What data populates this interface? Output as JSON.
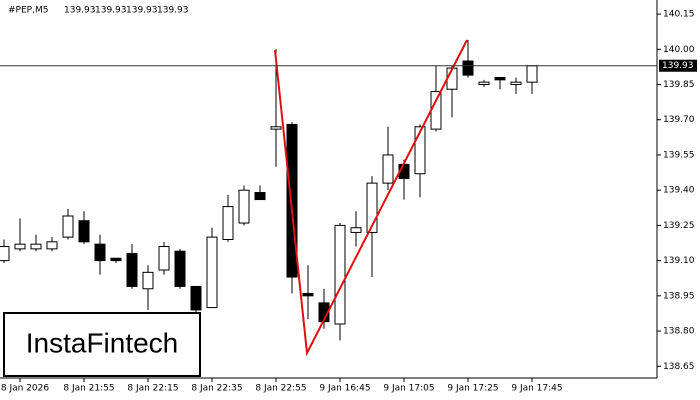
{
  "chart_data": {
    "type": "candlestick",
    "symbol": "#PEP,M5",
    "quote": [
      139.93,
      139.93,
      139.93,
      139.93
    ],
    "last_price": 139.93,
    "logo": "InstaFintech",
    "categories": [
      null,
      "8 Jan 2026",
      null,
      null,
      null,
      "8 Jan 21:55",
      null,
      null,
      null,
      "8 Jan 22:15",
      null,
      null,
      null,
      "8 Jan 22:35",
      null,
      null,
      null,
      "8 Jan 22:55",
      null,
      null,
      null,
      "9 Jan 16:45",
      null,
      null,
      null,
      "9 Jan 17:05",
      null,
      null,
      null,
      "9 Jan 17:25",
      null,
      null,
      null,
      "9 Jan 17:45"
    ],
    "open": [
      139.1,
      139.15,
      139.15,
      139.15,
      139.2,
      139.27,
      139.17,
      139.11,
      139.13,
      138.98,
      139.06,
      139.14,
      138.99,
      138.9,
      139.19,
      139.26,
      139.39,
      139.66,
      139.68,
      138.96,
      138.92,
      138.83,
      139.22,
      139.22,
      139.43,
      139.51,
      139.47,
      139.66,
      139.83,
      139.95,
      139.85,
      139.88,
      139.85,
      139.86
    ],
    "high": [
      139.19,
      139.28,
      139.21,
      139.2,
      139.32,
      139.31,
      139.21,
      139.11,
      139.17,
      139.08,
      139.18,
      139.15,
      138.99,
      139.24,
      139.38,
      139.42,
      139.42,
      140.0,
      139.69,
      139.08,
      138.98,
      139.26,
      139.31,
      139.46,
      139.67,
      139.53,
      139.68,
      139.93,
      139.93,
      140.04,
      139.87,
      139.88,
      139.88,
      139.93
    ],
    "low": [
      139.09,
      139.14,
      139.14,
      139.14,
      139.19,
      139.17,
      139.04,
      139.09,
      138.98,
      138.89,
      139.04,
      138.98,
      138.83,
      138.9,
      139.18,
      139.25,
      139.36,
      139.5,
      138.96,
      138.85,
      138.81,
      138.76,
      139.16,
      139.03,
      139.4,
      139.36,
      139.37,
      139.65,
      139.71,
      139.88,
      139.84,
      139.83,
      139.81,
      139.81
    ],
    "close": [
      139.16,
      139.17,
      139.17,
      139.18,
      139.29,
      139.18,
      139.1,
      139.1,
      138.99,
      139.05,
      139.16,
      138.99,
      138.89,
      139.2,
      139.33,
      139.4,
      139.36,
      139.67,
      139.03,
      138.95,
      138.84,
      139.25,
      139.24,
      139.43,
      139.55,
      139.45,
      139.67,
      139.82,
      139.92,
      139.89,
      139.86,
      139.87,
      139.86,
      139.93
    ],
    "up_color": "#ffffff",
    "down_color": "#000000",
    "ylim": [
      138.6,
      140.21
    ],
    "yticks": [
      {
        "value": 138.65,
        "label": "138.65"
      },
      {
        "value": 138.8,
        "label": "138.80"
      },
      138.95,
      {
        "value": 139.1,
        "label": "139.10"
      },
      139.25,
      {
        "value": 139.4,
        "label": "139.40"
      },
      139.55,
      {
        "value": 139.7,
        "label": "139.70"
      },
      139.85,
      {
        "value": 140.0,
        "label": "140.00"
      },
      140.15
    ]
  }
}
